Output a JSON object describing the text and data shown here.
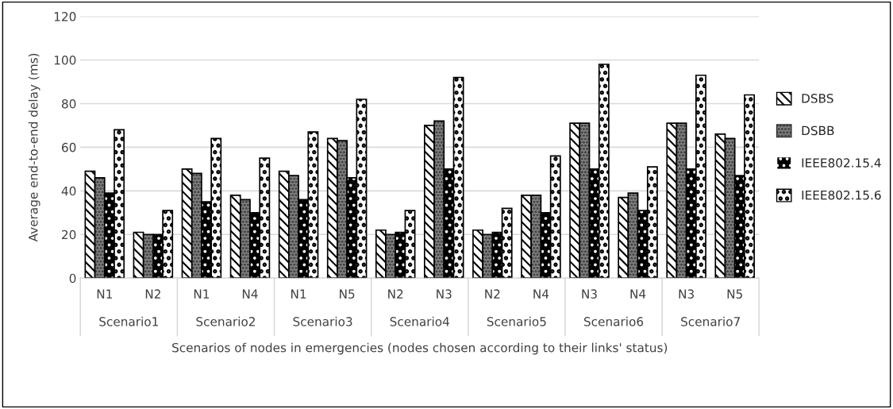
{
  "chart_data": {
    "type": "bar",
    "ylabel": "Average end-to-end delay (ms)",
    "xlabel": "Scenarios of nodes in emergencies (nodes chosen according to their links' status)",
    "categories": [
      "N1",
      "N2",
      "N1",
      "N4",
      "N1",
      "N5",
      "N2",
      "N3",
      "N2",
      "N4",
      "N3",
      "N4",
      "N3",
      "N5"
    ],
    "annotations": [
      "Scenario1",
      "Scenario2",
      "Scenario3",
      "Scenario4",
      "Scenario5",
      "Scenario6",
      "Scenario7"
    ],
    "series": [
      {
        "name": "DSBS",
        "color": "#ffffff",
        "values": [
          49,
          21,
          50,
          38,
          49,
          64,
          22,
          70,
          22,
          38,
          71,
          37,
          71,
          66
        ]
      },
      {
        "name": "DSBB",
        "color": "#808080",
        "values": [
          46,
          20,
          48,
          36,
          47,
          63,
          20,
          72,
          20,
          38,
          71,
          39,
          71,
          64
        ]
      },
      {
        "name": "IEEE802.15.4",
        "color": "#000000",
        "values": [
          39,
          20,
          35,
          30,
          36,
          46,
          21,
          50,
          21,
          30,
          50,
          31,
          50,
          47
        ]
      },
      {
        "name": "IEEE802.15.6",
        "color": "#ffffff",
        "values": [
          68,
          31,
          64,
          55,
          67,
          82,
          31,
          92,
          32,
          56,
          98,
          51,
          93,
          84
        ]
      }
    ],
    "ylim": [
      0,
      120
    ],
    "yticks": [
      0,
      20,
      40,
      60,
      80,
      100,
      120
    ],
    "grid": "y",
    "legend": "right"
  }
}
